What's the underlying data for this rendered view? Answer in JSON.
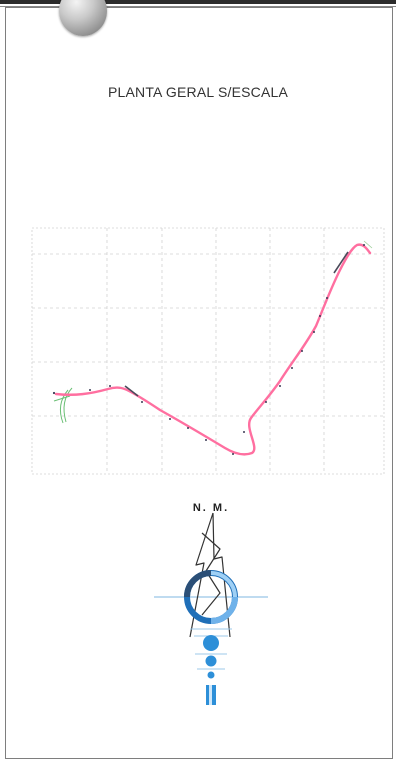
{
  "title": "PLANTA GERAL S/ESCALA",
  "plan": {
    "route_line_color": "#ff6fa0",
    "grid_color": "#cfcfcf",
    "marker_color": "#445"
  },
  "north_arrow": {
    "label": "N. M.",
    "accent_color": "#2d8fd8"
  }
}
